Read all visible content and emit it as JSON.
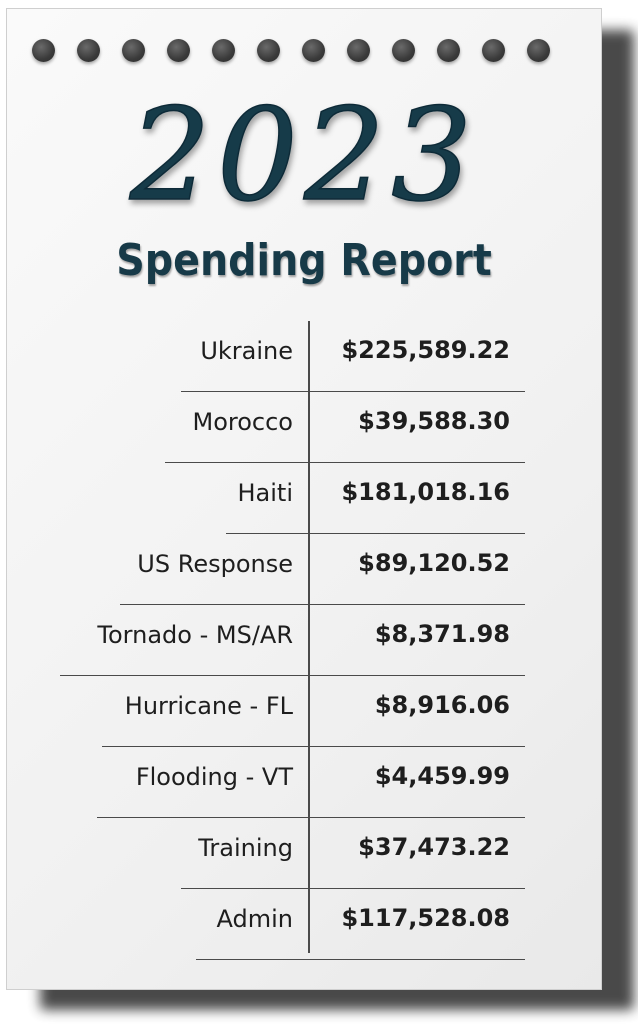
{
  "header": {
    "year": "2023",
    "subtitle": "Spending Report"
  },
  "colors": {
    "title": "#173a48",
    "text": "#1e1e1e",
    "rule": "#4a4a4a"
  },
  "rows": [
    {
      "label": "Ukraine",
      "amount": "$225,589.22"
    },
    {
      "label": "Morocco",
      "amount": "$39,588.30"
    },
    {
      "label": "Haiti",
      "amount": "$181,018.16"
    },
    {
      "label": "US Response",
      "amount": "$89,120.52"
    },
    {
      "label": "Tornado - MS/AR",
      "amount": "$8,371.98"
    },
    {
      "label": "Hurricane - FL",
      "amount": "$8,916.06"
    },
    {
      "label": "Flooding - VT",
      "amount": "$4,459.99"
    },
    {
      "label": "Training",
      "amount": "$37,473.22"
    },
    {
      "label": "Admin",
      "amount": "$117,528.08"
    }
  ]
}
